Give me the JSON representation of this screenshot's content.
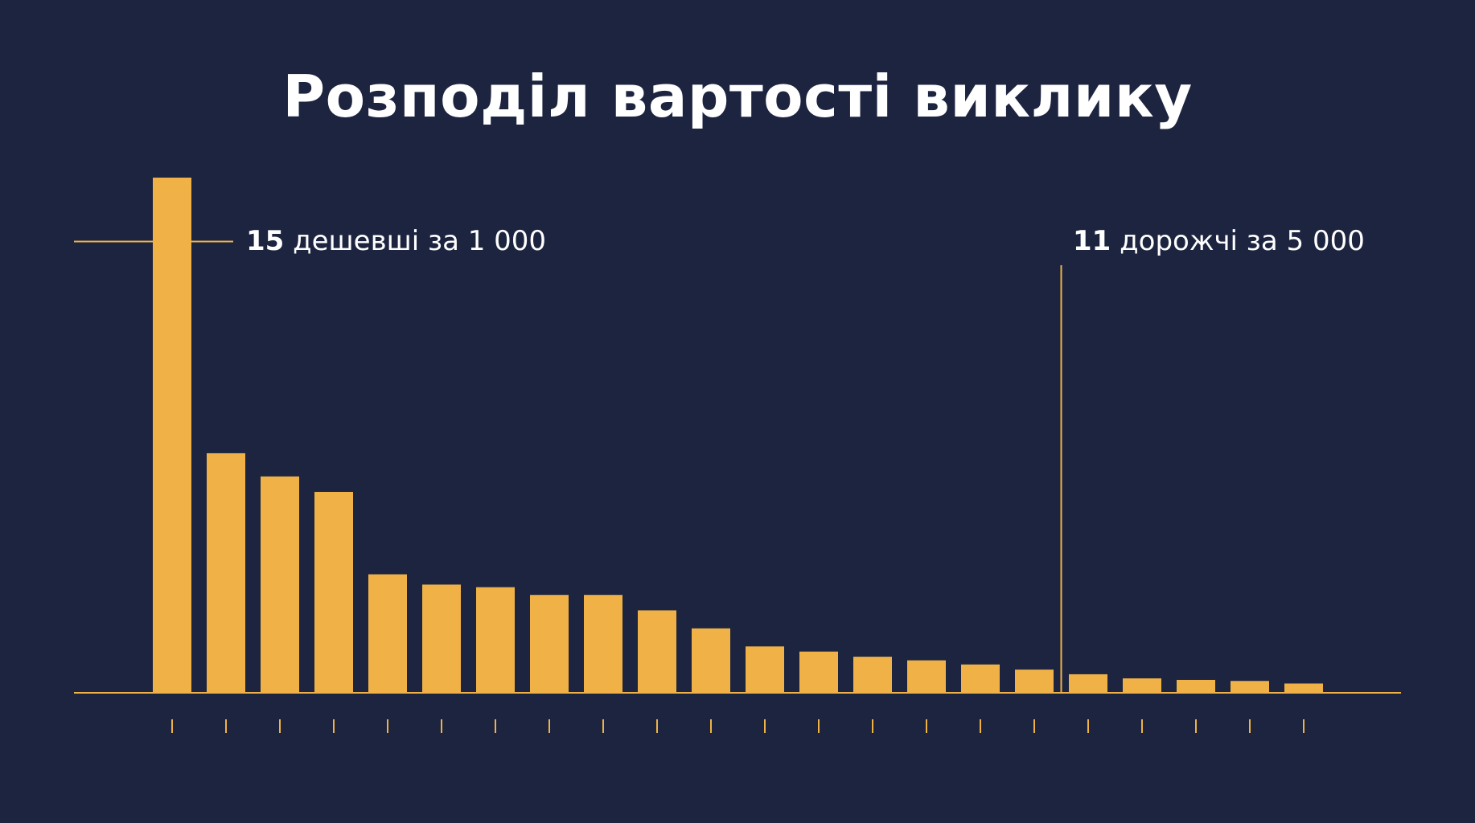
{
  "colors": {
    "background": "#1c2440",
    "bar": "#f0b247",
    "text": "#ffffff"
  },
  "chart_data": {
    "type": "bar",
    "title": "Розподіл вартості виклику",
    "xlabel": "",
    "ylabel": "",
    "categories": [
      "",
      "",
      "",
      "",
      "",
      "",
      "",
      "",
      "",
      "",
      "",
      "",
      "",
      "",
      "",
      "",
      "",
      "",
      "",
      "",
      "",
      ""
    ],
    "values": [
      100,
      46.5,
      42,
      39,
      23,
      21,
      20.5,
      19,
      19,
      16,
      12.5,
      9,
      8,
      7,
      6.3,
      5.5,
      4.5,
      3.6,
      2.8,
      2.5,
      2.3,
      1.8
    ],
    "ylim": [
      0,
      100
    ],
    "grid": false,
    "legend": "none",
    "annotations": [
      {
        "bold": "15",
        "text": " дешевші за 1 000",
        "kind": "horizontal-line",
        "y": 87.6,
        "bar_index": 0
      },
      {
        "bold": "11",
        "text": " дорожчі за 5 000",
        "kind": "vertical-line",
        "between_bars": [
          16,
          17
        ]
      }
    ]
  }
}
